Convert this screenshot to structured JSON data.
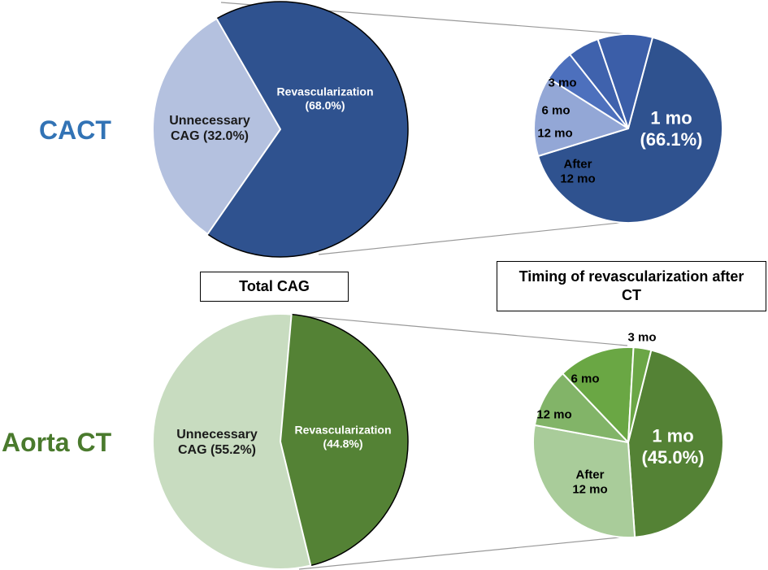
{
  "colors": {
    "cact_label": "#3273b5",
    "aorta_label": "#4a7a2d"
  },
  "labels": {
    "cact": "CACT",
    "aorta": "Aorta CT",
    "total_box": "Total CAG",
    "timing_box": "Timing of revascularization after CT"
  },
  "chart_data": [
    {
      "type": "pie",
      "title": "CACT – Total CAG",
      "start_angle_deg": 330,
      "slices": [
        {
          "name": "Revascularization",
          "value": 68.0,
          "color": "#2f528f",
          "label": [
            "Revascularization",
            "(68.0%)"
          ],
          "label_color": "#ffffff",
          "label_size": 14
        },
        {
          "name": "Unnecessary CAG",
          "value": 32.0,
          "color": "#b4c1df",
          "label": [
            "Unnecessary",
            "CAG (32.0%)"
          ],
          "label_color": "#1a1a1a",
          "label_size": 16
        }
      ]
    },
    {
      "type": "pie",
      "title": "CACT – Timing of revascularization after CT",
      "start_angle_deg": 15,
      "slices": [
        {
          "name": "1 mo",
          "value": 66.1,
          "color": "#2f528f",
          "label": [
            "1 mo",
            "(66.1%)"
          ],
          "label_color": "#ffffff",
          "label_size": 22
        },
        {
          "name": "After 12 mo",
          "value": 13.7,
          "color": "#93a7d6",
          "label": [
            "After",
            "12 mo"
          ],
          "label_color": "#000000",
          "label_size": 15
        },
        {
          "name": "12 mo",
          "value": 5.4,
          "color": "#4d70bd",
          "label": [
            "12 mo"
          ],
          "label_color": "#000000",
          "label_size": 15
        },
        {
          "name": "6 mo",
          "value": 5.4,
          "color": "#3f62ad",
          "label": [
            "6 mo"
          ],
          "label_color": "#000000",
          "label_size": 15
        },
        {
          "name": "3 mo",
          "value": 9.4,
          "color": "#3b5ea8",
          "label": [
            "3 mo"
          ],
          "label_color": "#000000",
          "label_size": 15
        }
      ]
    },
    {
      "type": "pie",
      "title": "Aorta CT – Total CAG",
      "start_angle_deg": 5,
      "slices": [
        {
          "name": "Revascularization",
          "value": 44.8,
          "color": "#548235",
          "label": [
            "Revascularization",
            "(44.8%)"
          ],
          "label_color": "#ffffff",
          "label_size": 14
        },
        {
          "name": "Unnecessary CAG",
          "value": 55.2,
          "color": "#c8dcc0",
          "label": [
            "Unnecessary",
            "CAG (55.2%)"
          ],
          "label_color": "#1a1a1a",
          "label_size": 16
        }
      ]
    },
    {
      "type": "pie",
      "title": "Aorta CT – Timing of revascularization after CT",
      "start_angle_deg": 14,
      "slices": [
        {
          "name": "1 mo",
          "value": 45.0,
          "color": "#548235",
          "label": [
            "1 mo",
            "(45.0%)"
          ],
          "label_color": "#ffffff",
          "label_size": 22
        },
        {
          "name": "After 12 mo",
          "value": 29.0,
          "color": "#a9cc9a",
          "label": [
            "After",
            "12 mo"
          ],
          "label_color": "#000000",
          "label_size": 15
        },
        {
          "name": "12 mo",
          "value": 10.0,
          "color": "#82b468",
          "label": [
            "12 mo"
          ],
          "label_color": "#000000",
          "label_size": 15
        },
        {
          "name": "6 mo",
          "value": 13.0,
          "color": "#6aa744",
          "label": [
            "6 mo"
          ],
          "label_color": "#000000",
          "label_size": 15
        },
        {
          "name": "3 mo",
          "value": 3.0,
          "color": "#6ba646",
          "label": [
            "3 mo"
          ],
          "label_color": "#000000",
          "label_size": 15,
          "outside_label": true
        }
      ]
    }
  ]
}
